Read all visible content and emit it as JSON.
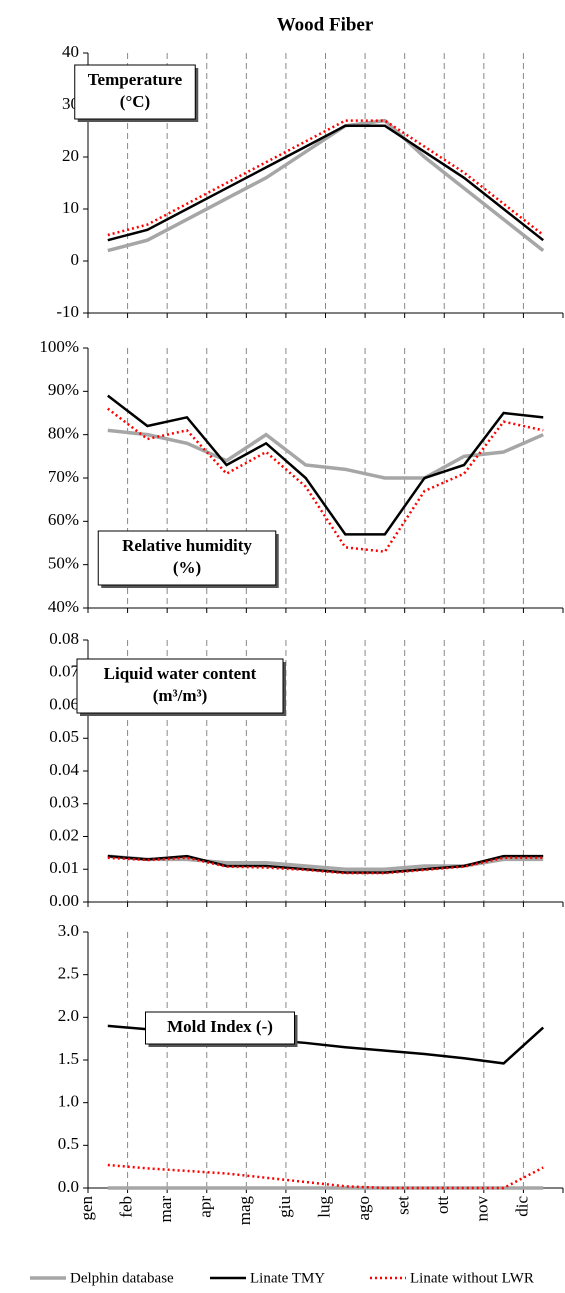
{
  "title": "Wood Fiber",
  "chart_data": [
    {
      "type": "line",
      "annotation": [
        "Temperature",
        "(°C)"
      ],
      "ylim": [
        -10,
        40
      ],
      "yticks": [
        -10,
        0,
        10,
        20,
        30,
        40
      ],
      "series": [
        {
          "name": "Delphin database",
          "color": "#a6a6a6",
          "values": [
            2,
            4,
            8,
            12,
            16,
            21,
            26,
            27,
            20,
            14,
            8,
            2
          ]
        },
        {
          "name": "Linate TMY",
          "color": "#000000",
          "values": [
            4,
            6,
            10,
            14,
            18,
            22,
            26,
            26,
            21,
            16,
            10,
            4
          ]
        },
        {
          "name": "Linate without LWR",
          "color": "#ff0000",
          "values": [
            5,
            7,
            11,
            15,
            19,
            23,
            27,
            27,
            22,
            17,
            11,
            5
          ]
        }
      ]
    },
    {
      "type": "line",
      "annotation": [
        "Relative humidity",
        "(%)"
      ],
      "ylim": [
        40,
        100
      ],
      "yticks": [
        {
          "value": 40,
          "label": "40%"
        },
        {
          "value": 50,
          "label": "50%"
        },
        {
          "value": 60,
          "label": "60%"
        },
        {
          "value": 70,
          "label": "70%"
        },
        {
          "value": 80,
          "label": "80%"
        },
        {
          "value": 90,
          "label": "90%"
        },
        {
          "value": 100,
          "label": "100%"
        }
      ],
      "series": [
        {
          "name": "Delphin database",
          "color": "#a6a6a6",
          "values": [
            81,
            80,
            78,
            74,
            80,
            73,
            72,
            70,
            70,
            75,
            76,
            80
          ]
        },
        {
          "name": "Linate TMY",
          "color": "#000000",
          "values": [
            89,
            82,
            84,
            73,
            78,
            70,
            57,
            57,
            70,
            73,
            85,
            84
          ]
        },
        {
          "name": "Linate without LWR",
          "color": "#ff0000",
          "values": [
            86,
            79,
            81,
            71,
            76,
            68,
            54,
            53,
            67,
            71,
            83,
            81
          ]
        }
      ]
    },
    {
      "type": "line",
      "annotation": [
        "Liquid water content",
        "(m³/m³)"
      ],
      "ylim": [
        0,
        0.08
      ],
      "yticks": [
        {
          "value": 0,
          "label": "0.00"
        },
        0.01,
        0.02,
        0.03,
        0.04,
        0.05,
        0.06,
        0.07,
        0.08
      ],
      "series": [
        {
          "name": "Delphin database",
          "color": "#a6a6a6",
          "values": [
            0.014,
            0.013,
            0.013,
            0.012,
            0.012,
            0.011,
            0.01,
            0.01,
            0.011,
            0.011,
            0.013,
            0.013
          ]
        },
        {
          "name": "Linate TMY",
          "color": "#000000",
          "values": [
            0.014,
            0.013,
            0.014,
            0.011,
            0.011,
            0.01,
            0.009,
            0.009,
            0.01,
            0.011,
            0.014,
            0.014
          ]
        },
        {
          "name": "Linate without LWR",
          "color": "#ff0000",
          "values": [
            0.0135,
            0.0128,
            0.0135,
            0.0108,
            0.0105,
            0.0098,
            0.0088,
            0.0088,
            0.0098,
            0.0108,
            0.0135,
            0.0135
          ]
        }
      ]
    },
    {
      "type": "line",
      "annotation": [
        "Mold Index (-)"
      ],
      "ylim": [
        0,
        3
      ],
      "yticks": [
        {
          "value": 0,
          "label": "0.0"
        },
        0.5,
        {
          "value": 1,
          "label": "1.0"
        },
        1.5,
        {
          "value": 2,
          "label": "2.0"
        },
        2.5,
        {
          "value": 3,
          "label": "3.0"
        }
      ],
      "categories": [
        "gen",
        "feb",
        "mar",
        "apr",
        "mag",
        "giu",
        "lug",
        "ago",
        "set",
        "ott",
        "nov",
        "dic"
      ],
      "series": [
        {
          "name": "Delphin database",
          "color": "#a6a6a6",
          "values": [
            0,
            0,
            0,
            0,
            0,
            0,
            0,
            0,
            0,
            0,
            0,
            0
          ]
        },
        {
          "name": "Linate TMY",
          "color": "#000000",
          "values": [
            1.9,
            1.86,
            1.82,
            1.78,
            1.74,
            1.7,
            1.65,
            1.61,
            1.57,
            1.52,
            1.46,
            1.88
          ]
        },
        {
          "name": "Linate without LWR",
          "color": "#ff0000",
          "values": [
            0.27,
            0.23,
            0.2,
            0.17,
            0.12,
            0.07,
            0.02,
            0,
            0,
            0,
            0,
            0.24
          ]
        }
      ]
    }
  ]
}
